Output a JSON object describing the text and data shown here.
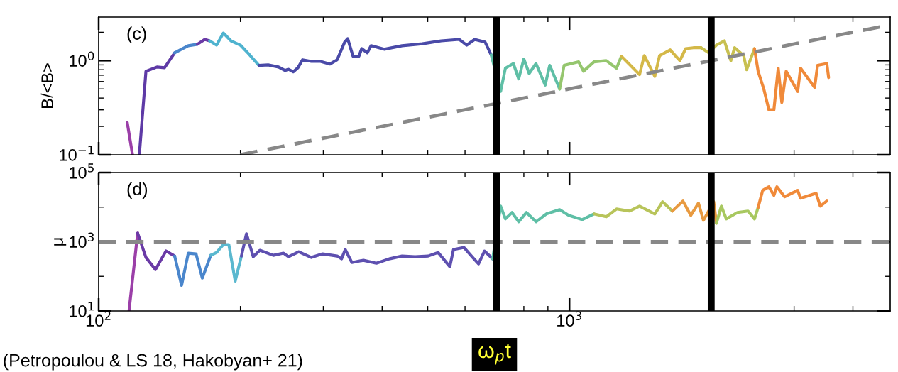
{
  "chart_data": [
    {
      "type": "line",
      "ylabel": "B/<B>",
      "log": "xy",
      "tick_labels": "y",
      "marker": "none",
      "line_style": "solid",
      "grid": false,
      "xlim": [
        100,
        4800
      ],
      "ylim": [
        0.1,
        2.9
      ],
      "yticks": [
        {
          "value": 0.1,
          "label": "10$^{−1}$"
        },
        {
          "value": 1,
          "label": "10$^{0}$"
        }
      ],
      "annotations": [
        "(c)"
      ],
      "ref_lines": [
        {
          "axis": "x",
          "value": 700,
          "color": "#000000",
          "line_style": "solid"
        },
        {
          "axis": "x",
          "value": 2000,
          "color": "#000000",
          "line_style": "solid"
        }
      ],
      "series": [
        {
          "color": "#9b3fa8",
          "x": [
            115,
            118
          ],
          "values": [
            0.22,
            0.1
          ]
        },
        {
          "color": "#5e3aa6",
          "x": [
            122,
            126,
            133,
            138,
            145
          ],
          "values": [
            0.1,
            0.77,
            0.855,
            0.84,
            1.21
          ]
        },
        {
          "color": "#4a86cc",
          "x": [
            145,
            155,
            162
          ],
          "values": [
            1.21,
            1.44,
            1.49
          ]
        },
        {
          "color": "#6a3aa6",
          "x": [
            162,
            168,
            172
          ],
          "values": [
            1.49,
            1.68,
            1.62
          ]
        },
        {
          "color": "#4fb3cf",
          "x": [
            172,
            178,
            184,
            191,
            200,
            208,
            219
          ],
          "values": [
            1.62,
            1.46,
            1.96,
            1.62,
            1.46,
            1.19,
            0.89
          ]
        },
        {
          "color": "#4a4aa8",
          "x": [
            219,
            229,
            241,
            249,
            253,
            259,
            265,
            271,
            283,
            296,
            310,
            321,
            333,
            338,
            347,
            357,
            362,
            372,
            379,
            404,
            441,
            487,
            534,
            583,
            605,
            629,
            662,
            682
          ],
          "values": [
            0.89,
            0.9,
            0.855,
            0.785,
            0.81,
            0.76,
            0.84,
            1.02,
            0.98,
            0.98,
            0.92,
            1.02,
            1.57,
            1.71,
            1.11,
            1.11,
            1.34,
            1.21,
            1.44,
            1.32,
            1.44,
            1.51,
            1.62,
            1.68,
            1.46,
            1.68,
            1.57,
            1.15
          ]
        },
        {
          "color": "#5fbfa6",
          "x": [
            682,
            714,
            731,
            760,
            780,
            800,
            821,
            849,
            888,
            908,
            953
          ],
          "values": [
            1.15,
            0.47,
            0.83,
            0.93,
            0.64,
            1.04,
            0.73,
            0.93,
            0.55,
            0.89,
            0.5
          ]
        },
        {
          "color": "#95c66e",
          "x": [
            953,
            974,
            1046,
            1071,
            1127,
            1197,
            1259,
            1289
          ],
          "values": [
            0.5,
            0.89,
            0.97,
            0.77,
            0.97,
            1.0,
            0.83,
            1.11
          ]
        },
        {
          "color": "#d4b848",
          "x": [
            1289,
            1409,
            1442,
            1518,
            1554,
            1636,
            1716,
            1765,
            1833,
            1903
          ],
          "values": [
            1.11,
            0.71,
            1.13,
            0.68,
            1.13,
            1.3,
            1.0,
            1.34,
            1.37,
            1.37
          ]
        },
        {
          "color": "#c8c050",
          "x": [
            1903,
            1976,
            2052,
            2133,
            2202,
            2242,
            2345,
            2378,
            2472
          ],
          "values": [
            1.37,
            1.21,
            1.46,
            1.62,
            1.0,
            1.37,
            1.13,
            0.8,
            1.34
          ]
        },
        {
          "color": "#f08a3a",
          "x": [
            2472,
            2516,
            2587,
            2652,
            2718,
            2776,
            2825,
            2886,
            3053,
            3096,
            3317,
            3365,
            3521,
            3552
          ],
          "values": [
            1.34,
            0.77,
            0.5,
            0.3,
            0.3,
            0.83,
            0.36,
            0.77,
            0.47,
            0.83,
            0.52,
            0.89,
            0.93,
            0.66
          ]
        },
        {
          "color": "#888888",
          "line_style": "dashed",
          "x": [
            200,
            4800
          ],
          "values": [
            0.1,
            2.4
          ]
        }
      ]
    },
    {
      "type": "line",
      "ylabel": "μ",
      "xlabel": "ω$_{p}$t",
      "log": "xy",
      "marker": "none",
      "line_style": "solid",
      "grid": false,
      "xlim": [
        100,
        4800
      ],
      "ylim": [
        10,
        100000
      ],
      "xticks": [
        {
          "value": 100,
          "label": "10$^{2}$"
        },
        {
          "value": 1000,
          "label": "10$^{3}$"
        }
      ],
      "yticks": [
        {
          "value": 10,
          "label": "10$^{1}$"
        },
        {
          "value": 100,
          "label": null
        },
        {
          "value": 1000,
          "label": "10$^{3}$"
        },
        {
          "value": 10000,
          "label": null
        },
        {
          "value": 100000,
          "label": "10$^{5}$"
        }
      ],
      "annotations": [
        "(d)",
        "(Petropoulou & LS 18, Hakobyan+ 21)"
      ],
      "ref_lines": [
        {
          "axis": "y",
          "value": 1000,
          "color": "#888888",
          "line_style": "dashed"
        },
        {
          "axis": "x",
          "value": 700,
          "color": "#000000",
          "line_style": "solid"
        },
        {
          "axis": "x",
          "value": 2000,
          "color": "#000000",
          "line_style": "solid"
        }
      ],
      "series": [
        {
          "color": "#9b3fa8",
          "x": [
            116,
            121
          ],
          "values": [
            10,
            1770
          ]
        },
        {
          "color": "#6a3aa6",
          "x": [
            121,
            126,
            132,
            139,
            145
          ],
          "values": [
            1770,
            352,
            157,
            540,
            387
          ]
        },
        {
          "color": "#4a86cc",
          "x": [
            145,
            150,
            155,
            161,
            166,
            173
          ],
          "values": [
            387,
            55,
            468,
            446,
            89,
            405
          ]
        },
        {
          "color": "#5ab8cf",
          "x": [
            173,
            178,
            184,
            189,
            195,
            201
          ],
          "values": [
            405,
            490,
            828,
            828,
            73,
            387
          ]
        },
        {
          "color": "#5e50b0",
          "x": [
            201,
            206,
            213,
            220,
            235,
            247,
            253,
            266,
            283,
            299,
            321,
            328,
            334,
            345,
            365,
            389,
            414,
            441,
            470,
            501,
            526,
            557,
            567,
            597,
            623,
            641,
            660,
            687
          ],
          "values": [
            387,
            1690,
            369,
            566,
            405,
            468,
            369,
            514,
            352,
            446,
            387,
            320,
            593,
            252,
            291,
            240,
            320,
            387,
            369,
            387,
            490,
            190,
            593,
            684,
            352,
            230,
            540,
            320
          ]
        },
        {
          "color": "#5fbfa6",
          "x": [
            687,
            714,
            731,
            755,
            780,
            810,
            849,
            893,
            953,
            996,
            1064,
            1127
          ],
          "values": [
            320,
            10700,
            4570,
            7000,
            3780,
            7000,
            3780,
            6370,
            8470,
            5800,
            4350,
            6370
          ]
        },
        {
          "color": "#b8c45a",
          "x": [
            1127,
            1197,
            1259,
            1340,
            1409,
            1518,
            1577,
            1654
          ],
          "values": [
            6370,
            5270,
            8870,
            7710,
            10700,
            6370,
            14300,
            7710
          ]
        },
        {
          "color": "#e89a40",
          "x": [
            1654,
            1742,
            1810,
            1879,
            1926,
            2025,
            2052
          ],
          "values": [
            7710,
            15000,
            5800,
            13000,
            4160,
            14300,
            3440
          ]
        },
        {
          "color": "#a8c860",
          "x": [
            2052,
            2102,
            2153,
            2274,
            2395,
            2472,
            2516
          ],
          "values": [
            3440,
            10700,
            4570,
            7000,
            7710,
            4570,
            9800
          ]
        },
        {
          "color": "#f08a3a",
          "x": [
            2516,
            2573,
            2652,
            2718,
            2758,
            2865,
            3053,
            3096,
            3340,
            3410,
            3521
          ],
          "values": [
            9800,
            30500,
            38700,
            21900,
            38700,
            19900,
            30500,
            18100,
            25200,
            10700,
            15000
          ]
        }
      ]
    }
  ]
}
